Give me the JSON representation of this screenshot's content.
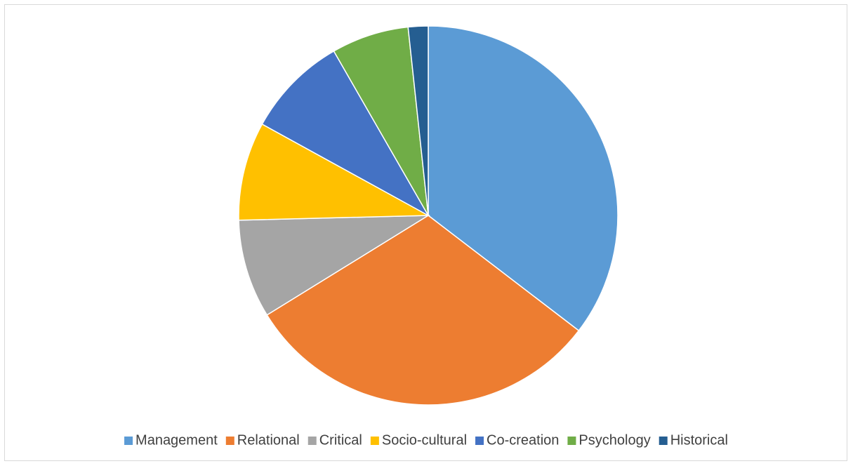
{
  "chart_data": {
    "type": "pie",
    "categories": [
      "Management",
      "Relational",
      "Critical",
      "Socio-cultural",
      "Co-creation",
      "Psychology",
      "Historical"
    ],
    "values": [
      35.4,
      30.8,
      8.4,
      8.4,
      8.7,
      6.6,
      1.7
    ],
    "colors": [
      "#5b9bd5",
      "#ed7d31",
      "#a5a5a5",
      "#ffc000",
      "#4472c4",
      "#70ad47",
      "#255e91"
    ],
    "legend": "bottom"
  }
}
